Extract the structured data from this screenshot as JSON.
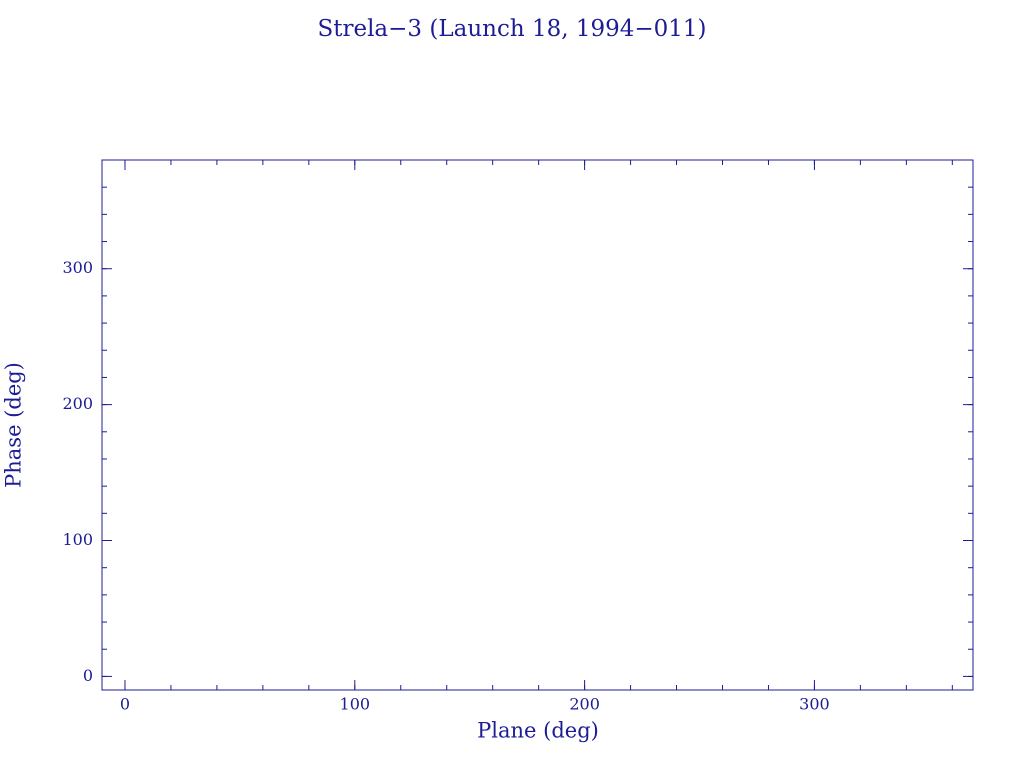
{
  "chart_data": {
    "type": "scatter",
    "title": "Strela−3 (Launch 18, 1994−011)",
    "x_label": "Plane (deg)",
    "y_label": "Phase (deg)",
    "xlim": [
      -10,
      369
    ],
    "ylim": [
      -10,
      380
    ],
    "xticks": [
      0,
      100,
      200,
      300
    ],
    "yticks": [
      0,
      100,
      200,
      300
    ],
    "minor_tick_step": 20,
    "color": "#1c1c96"
  }
}
